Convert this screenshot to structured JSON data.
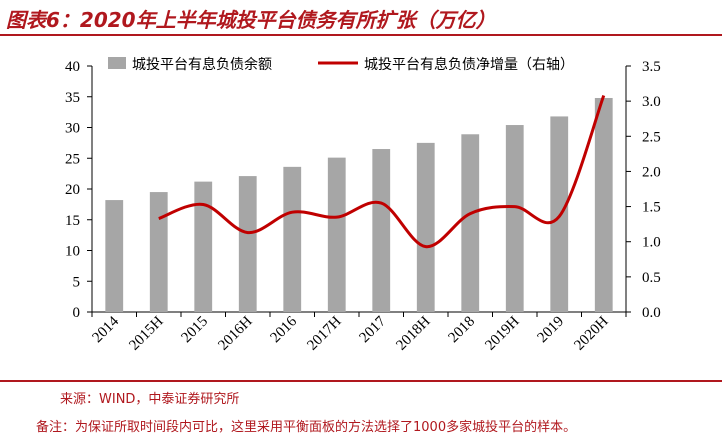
{
  "title": "图表6：2020年上半年城投平台债务有所扩张（万亿）",
  "source": "来源：WIND，中泰证券研究所",
  "note": "备注：为保证所取时间段内可比，这里采用平衡面板的方法选择了1000多家城投平台的样本。",
  "colors": {
    "bar": "#a6a6a6",
    "line": "#c00000",
    "accent": "#b0181e"
  },
  "chart_data": {
    "type": "bar",
    "categories": [
      "2014",
      "2015H",
      "2015",
      "2016H",
      "2016",
      "2017H",
      "2017",
      "2018H",
      "2018",
      "2019H",
      "2019",
      "2020H"
    ],
    "series": [
      {
        "name": "城投平台有息负债余额",
        "type": "bar",
        "axis": "left",
        "values": [
          18.2,
          19.5,
          21.2,
          22.1,
          23.6,
          25.1,
          26.5,
          27.5,
          28.9,
          30.4,
          31.8,
          34.8
        ]
      },
      {
        "name": "城投平台有息负债净增量（右轴）",
        "type": "line",
        "axis": "right",
        "values": [
          null,
          1.33,
          1.53,
          1.13,
          1.42,
          1.35,
          1.55,
          0.93,
          1.4,
          1.5,
          1.36,
          3.08
        ]
      }
    ],
    "y_left": {
      "min": 0,
      "max": 40,
      "step": 5,
      "ticks": [
        "0",
        "5",
        "10",
        "15",
        "20",
        "25",
        "30",
        "35",
        "40"
      ]
    },
    "y_right": {
      "min": 0,
      "max": 3.5,
      "step": 0.5,
      "ticks": [
        "0.0",
        "0.5",
        "1.0",
        "1.5",
        "2.0",
        "2.5",
        "3.0",
        "3.5"
      ]
    },
    "legend": [
      "城投平台有息负债余额",
      "城投平台有息负债净增量（右轴）"
    ]
  }
}
